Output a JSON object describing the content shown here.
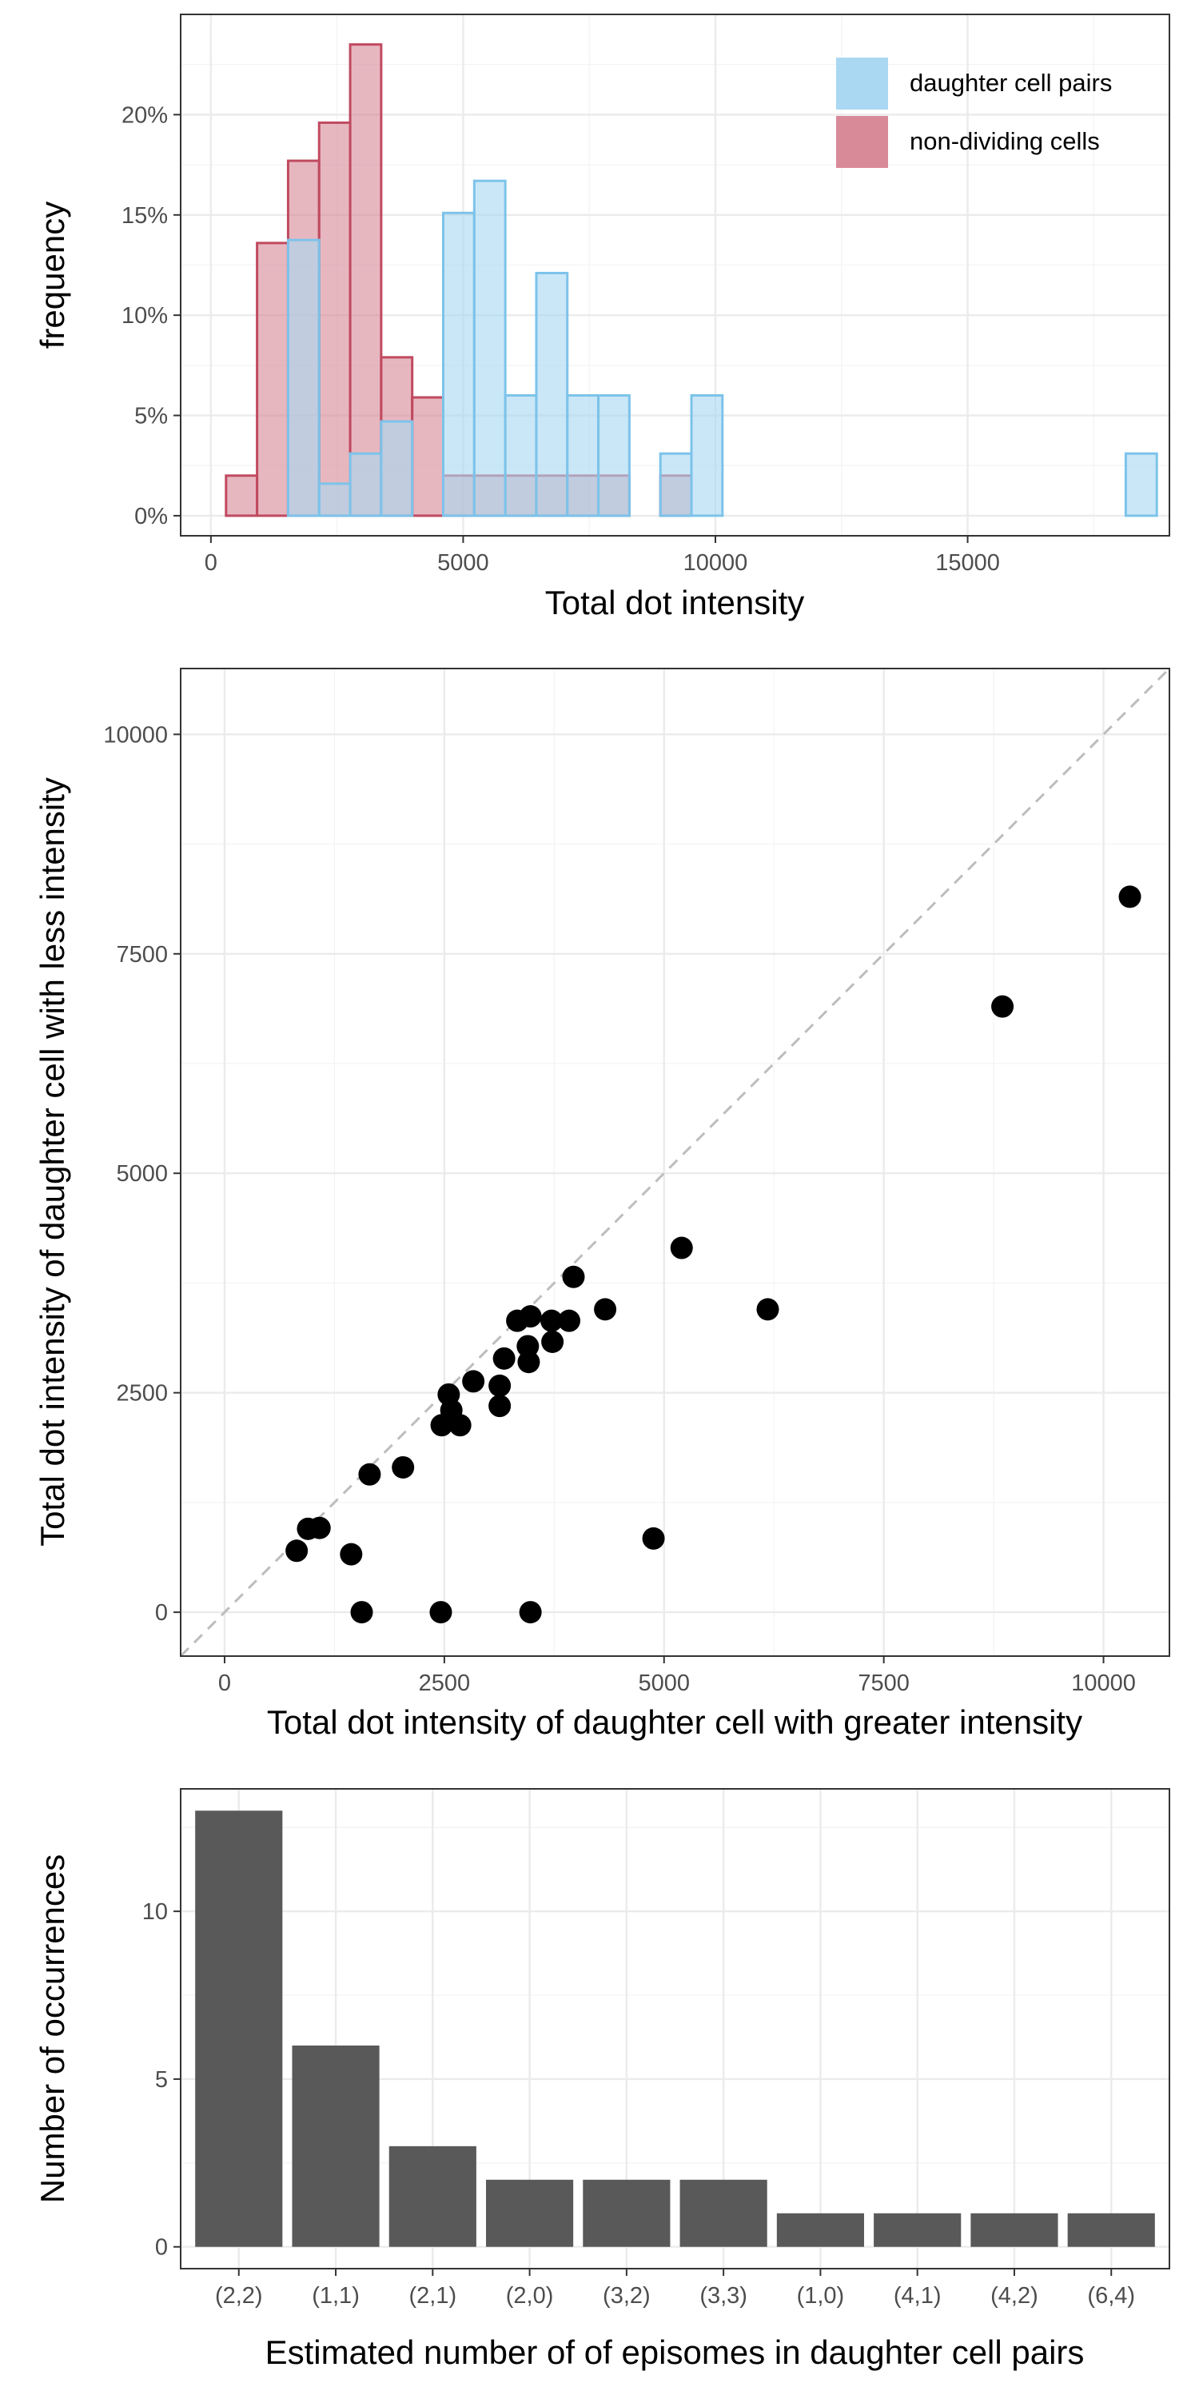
{
  "colors": {
    "daughter_fill": "#aad8f2",
    "daughter_stroke": "#7cc3ea",
    "nondividing_fill": "#d98a99",
    "nondividing_stroke": "#c04a60",
    "bar_fill": "#595959",
    "point": "#000000",
    "reference_line": "#bdbdbd"
  },
  "chart_data": [
    {
      "type": "bar",
      "subtype": "histogram",
      "xlabel": "Total dot intensity",
      "ylabel": "frequency",
      "xlim": [
        -600,
        19000
      ],
      "ylim": [
        -0.01,
        0.25
      ],
      "x_ticks": [
        0,
        5000,
        10000,
        15000
      ],
      "x_tick_labels": [
        "0",
        "5000",
        "10000",
        "15000"
      ],
      "y_ticks": [
        0,
        0.05,
        0.1,
        0.15,
        0.2
      ],
      "y_tick_labels": [
        "0%",
        "5%",
        "10%",
        "15%",
        "20%"
      ],
      "bin_width": 615,
      "first_bin_start": 300,
      "grid": true,
      "legend_position": "top-right",
      "series": [
        {
          "name": "daughter cell pairs",
          "values": [
            0,
            0,
            0.1375,
            0.016,
            0.031,
            0.047,
            0.0,
            0.151,
            0.167,
            0.06,
            0.121,
            0.06,
            0.06,
            0.0,
            0.031,
            0.06,
            0,
            0,
            0,
            0,
            0,
            0,
            0,
            0,
            0,
            0,
            0,
            0,
            0,
            0.031,
            0,
            0,
            0.031
          ]
        },
        {
          "name": "non-dividing cells",
          "values": [
            0.02,
            0.136,
            0.177,
            0.196,
            0.235,
            0.079,
            0.059,
            0.02,
            0.02,
            0.02,
            0.02,
            0.02,
            0.02,
            0.0,
            0.02,
            0,
            0,
            0,
            0,
            0,
            0,
            0,
            0,
            0,
            0,
            0,
            0,
            0,
            0,
            0,
            0,
            0,
            0
          ]
        }
      ]
    },
    {
      "type": "scatter",
      "xlabel": "Total dot intensity of daughter cell with greater intensity",
      "ylabel": "Total dot intensity of daughter cell with less intensity",
      "xlim": [
        -500,
        10750
      ],
      "ylim": [
        -500,
        10750
      ],
      "x_ticks": [
        0,
        2500,
        5000,
        7500,
        10000
      ],
      "x_tick_labels": [
        "0",
        "2500",
        "5000",
        "7500",
        "10000"
      ],
      "y_ticks": [
        0,
        2500,
        5000,
        7500,
        10000
      ],
      "y_tick_labels": [
        "0",
        "2500",
        "5000",
        "7500",
        "10000"
      ],
      "reference_line": "y = x (dashed)",
      "grid": true,
      "points": [
        {
          "x": 10300,
          "y": 8150
        },
        {
          "x": 8850,
          "y": 6900
        },
        {
          "x": 5200,
          "y": 4150
        },
        {
          "x": 6180,
          "y": 3450
        },
        {
          "x": 4330,
          "y": 3450
        },
        {
          "x": 3970,
          "y": 3820
        },
        {
          "x": 3920,
          "y": 3320
        },
        {
          "x": 3720,
          "y": 3320
        },
        {
          "x": 3730,
          "y": 3080
        },
        {
          "x": 3480,
          "y": 3370
        },
        {
          "x": 3330,
          "y": 3320
        },
        {
          "x": 3450,
          "y": 3030
        },
        {
          "x": 3460,
          "y": 2850
        },
        {
          "x": 3180,
          "y": 2890
        },
        {
          "x": 3130,
          "y": 2580
        },
        {
          "x": 3130,
          "y": 2350
        },
        {
          "x": 2830,
          "y": 2630
        },
        {
          "x": 2550,
          "y": 2480
        },
        {
          "x": 2580,
          "y": 2300
        },
        {
          "x": 2470,
          "y": 2130
        },
        {
          "x": 2680,
          "y": 2130
        },
        {
          "x": 2030,
          "y": 1650
        },
        {
          "x": 1650,
          "y": 1570
        },
        {
          "x": 1080,
          "y": 960
        },
        {
          "x": 950,
          "y": 950
        },
        {
          "x": 820,
          "y": 700
        },
        {
          "x": 1440,
          "y": 660
        },
        {
          "x": 4880,
          "y": 840
        },
        {
          "x": 1560,
          "y": 0
        },
        {
          "x": 2460,
          "y": 0
        },
        {
          "x": 3480,
          "y": 0
        }
      ]
    },
    {
      "type": "bar",
      "xlabel": "Estimated number of of episomes in daughter cell pairs",
      "ylabel": "Number of occurrences",
      "categories": [
        "(2,2)",
        "(1,1)",
        "(2,1)",
        "(2,0)",
        "(3,2)",
        "(3,3)",
        "(1,0)",
        "(4,1)",
        "(4,2)",
        "(6,4)"
      ],
      "values": [
        13,
        6,
        3,
        2,
        2,
        2,
        1,
        1,
        1,
        1
      ],
      "ylim": [
        -0.65,
        13.65
      ],
      "y_ticks": [
        0,
        5,
        10
      ],
      "y_tick_labels": [
        "0",
        "5",
        "10"
      ],
      "grid": true
    }
  ]
}
